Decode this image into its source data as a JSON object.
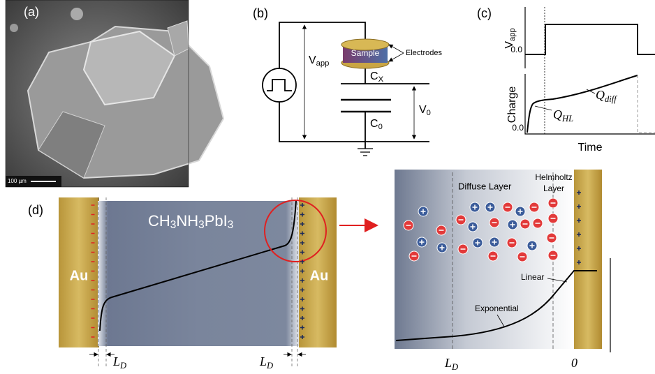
{
  "panels": {
    "a": {
      "label": "(a)",
      "scale_bar": "100 µm"
    },
    "b": {
      "label": "(b)",
      "sample": "Sample",
      "electrodes": "Electrodes",
      "v_app": {
        "main": "V",
        "sub": "app"
      },
      "c_x": {
        "main": "C",
        "sub": "X"
      },
      "c_0": {
        "main": "C",
        "sub": "0"
      },
      "v_0": {
        "main": "V",
        "sub": "0"
      }
    },
    "c": {
      "label": "(c)",
      "top_axis": {
        "main": "V",
        "sub": "app"
      },
      "top_zero": "0.0",
      "bottom_axis": "Charge",
      "bottom_zero": "0.0",
      "q_hl": {
        "main": "Q",
        "sub": "HL"
      },
      "q_diff": {
        "main": "Q",
        "sub": "diff"
      },
      "x_axis": "Time"
    },
    "d": {
      "label": "(d)",
      "left_electrode": "Au",
      "right_electrode": "Au",
      "material": [
        "CH",
        "3",
        "NH",
        "3",
        "PbI",
        "3"
      ],
      "left_width": {
        "main": "L",
        "sub": "D"
      },
      "right_width": {
        "main": "L",
        "sub": "D"
      },
      "zoom": {
        "diffuse": "Diffuse Layer",
        "helmholtz": [
          "Helmholtz",
          "Layer"
        ],
        "linear": "Linear",
        "exponential": "Exponential",
        "x_left": {
          "main": "L",
          "sub": "D"
        },
        "x_right": "0"
      }
    }
  }
}
